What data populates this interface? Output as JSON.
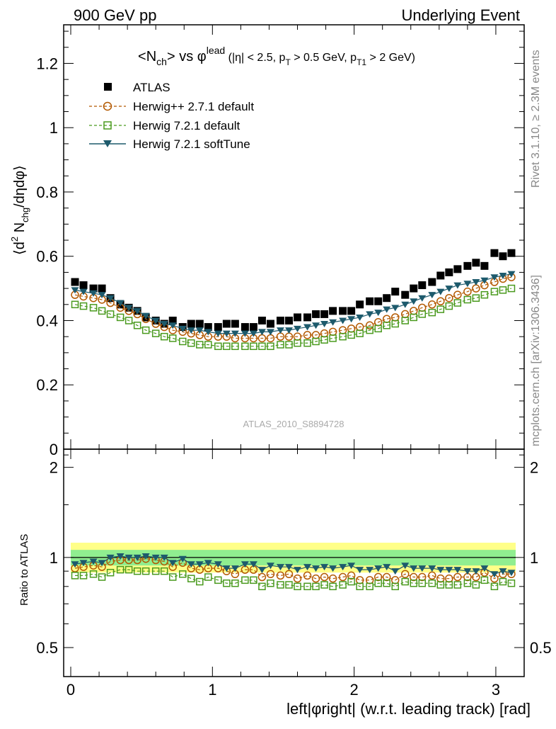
{
  "header": {
    "left": "900 GeV pp",
    "right": "Underlying Event"
  },
  "side_labels": {
    "rivet": "Rivet 3.1.10, ≥ 2.3M events",
    "mcplots": "mcplots.cern.ch [arXiv:1306.3436]"
  },
  "watermark": "ATLAS_2010_S8894728",
  "colors": {
    "atlas": "#000000",
    "herwigpp": "#b35900",
    "herwig721": "#4a9a1e",
    "softtune": "#1d5a6c",
    "band_inner": "#90ee90",
    "band_outer": "#ffff88"
  },
  "chart_data": [
    {
      "type": "scatter",
      "title_parts": {
        "n": "N",
        "n_sub": "ch",
        "vs": "vs",
        "phi": "φ",
        "lead": "lead",
        "cuts_a": "(|η| < 2.5, p",
        "sub_t": "T",
        "cuts_b": " > 0.5 GeV, p",
        "sub_t1": "T1",
        "cuts_c": " > 2 GeV)"
      },
      "ylabel_parts": {
        "a": "⟨d",
        "sup2": "2",
        "b": " N",
        "sub": "chg",
        "c": "/dηdφ⟩"
      },
      "ylim": [
        0,
        1.32
      ],
      "yticks": [
        "0",
        "0.2",
        "0.4",
        "0.6",
        "0.8",
        "1",
        "1.2"
      ],
      "x": [
        0.03,
        0.09,
        0.16,
        0.22,
        0.28,
        0.35,
        0.41,
        0.47,
        0.53,
        0.6,
        0.66,
        0.72,
        0.79,
        0.85,
        0.91,
        0.97,
        1.04,
        1.1,
        1.16,
        1.23,
        1.29,
        1.35,
        1.41,
        1.48,
        1.54,
        1.6,
        1.67,
        1.73,
        1.79,
        1.85,
        1.92,
        1.98,
        2.04,
        2.11,
        2.17,
        2.23,
        2.29,
        2.36,
        2.42,
        2.48,
        2.55,
        2.61,
        2.67,
        2.73,
        2.8,
        2.86,
        2.92,
        2.99,
        3.05,
        3.11
      ],
      "series": [
        {
          "name": "ATLAS",
          "marker": "square-filled",
          "values": [
            0.52,
            0.51,
            0.5,
            0.5,
            0.47,
            0.45,
            0.44,
            0.43,
            0.41,
            0.4,
            0.39,
            0.4,
            0.38,
            0.39,
            0.39,
            0.38,
            0.38,
            0.39,
            0.39,
            0.38,
            0.38,
            0.4,
            0.39,
            0.4,
            0.4,
            0.41,
            0.41,
            0.42,
            0.42,
            0.43,
            0.43,
            0.43,
            0.45,
            0.46,
            0.46,
            0.47,
            0.49,
            0.48,
            0.5,
            0.51,
            0.52,
            0.54,
            0.55,
            0.56,
            0.57,
            0.58,
            0.57,
            0.61,
            0.6,
            0.61
          ]
        },
        {
          "name": "Herwig++ 2.7.1 default",
          "marker": "circle-open",
          "values": [
            0.48,
            0.475,
            0.47,
            0.465,
            0.455,
            0.44,
            0.43,
            0.42,
            0.405,
            0.39,
            0.38,
            0.37,
            0.365,
            0.36,
            0.355,
            0.35,
            0.35,
            0.35,
            0.345,
            0.345,
            0.345,
            0.345,
            0.345,
            0.35,
            0.35,
            0.35,
            0.355,
            0.355,
            0.36,
            0.365,
            0.37,
            0.375,
            0.38,
            0.385,
            0.395,
            0.405,
            0.41,
            0.42,
            0.43,
            0.44,
            0.45,
            0.46,
            0.47,
            0.48,
            0.49,
            0.5,
            0.51,
            0.52,
            0.53,
            0.535
          ]
        },
        {
          "name": "Herwig 7.2.1 default",
          "marker": "square-open",
          "values": [
            0.45,
            0.445,
            0.44,
            0.43,
            0.42,
            0.41,
            0.4,
            0.385,
            0.37,
            0.36,
            0.35,
            0.345,
            0.335,
            0.33,
            0.325,
            0.325,
            0.32,
            0.32,
            0.32,
            0.32,
            0.32,
            0.32,
            0.32,
            0.325,
            0.325,
            0.33,
            0.33,
            0.335,
            0.34,
            0.345,
            0.35,
            0.355,
            0.36,
            0.37,
            0.375,
            0.385,
            0.39,
            0.4,
            0.41,
            0.42,
            0.425,
            0.435,
            0.445,
            0.455,
            0.465,
            0.47,
            0.48,
            0.49,
            0.495,
            0.5
          ]
        },
        {
          "name": "Herwig 7.2.1 softTune",
          "marker": "triangle-down-filled",
          "values": [
            0.495,
            0.49,
            0.485,
            0.48,
            0.47,
            0.455,
            0.44,
            0.43,
            0.415,
            0.4,
            0.39,
            0.385,
            0.375,
            0.37,
            0.37,
            0.365,
            0.36,
            0.36,
            0.36,
            0.36,
            0.36,
            0.365,
            0.365,
            0.37,
            0.37,
            0.375,
            0.38,
            0.385,
            0.39,
            0.395,
            0.4,
            0.405,
            0.41,
            0.42,
            0.425,
            0.435,
            0.44,
            0.45,
            0.46,
            0.47,
            0.48,
            0.49,
            0.5,
            0.51,
            0.515,
            0.52,
            0.525,
            0.535,
            0.54,
            0.545
          ]
        }
      ]
    },
    {
      "type": "scatter",
      "ylabel": "Ratio to ATLAS",
      "xlabel": "left|φright| (w.r.t. leading track) [rad]",
      "ylim": [
        0.4,
        2.3
      ],
      "yscale": "log",
      "yticks": [
        "0.5",
        "1",
        "2"
      ],
      "xlim": [
        -0.05,
        3.2
      ],
      "xticks": [
        "0",
        "1",
        "2",
        "3"
      ],
      "band_inner": [
        0.94,
        1.06
      ],
      "band_outer": [
        0.89,
        1.12
      ],
      "series": [
        {
          "name": "Herwig++ 2.7.1 default",
          "values": [
            0.92,
            0.93,
            0.94,
            0.93,
            0.97,
            0.98,
            0.98,
            0.98,
            0.99,
            0.98,
            0.97,
            0.93,
            0.96,
            0.92,
            0.91,
            0.92,
            0.92,
            0.9,
            0.88,
            0.91,
            0.91,
            0.86,
            0.88,
            0.87,
            0.88,
            0.85,
            0.87,
            0.85,
            0.86,
            0.85,
            0.86,
            0.87,
            0.84,
            0.84,
            0.86,
            0.86,
            0.84,
            0.88,
            0.86,
            0.86,
            0.87,
            0.85,
            0.85,
            0.86,
            0.86,
            0.86,
            0.89,
            0.85,
            0.88,
            0.88
          ]
        },
        {
          "name": "Herwig 7.2.1 default",
          "values": [
            0.87,
            0.87,
            0.88,
            0.86,
            0.89,
            0.91,
            0.91,
            0.9,
            0.9,
            0.9,
            0.9,
            0.86,
            0.88,
            0.85,
            0.83,
            0.86,
            0.84,
            0.82,
            0.82,
            0.84,
            0.84,
            0.8,
            0.82,
            0.81,
            0.81,
            0.8,
            0.8,
            0.8,
            0.81,
            0.8,
            0.81,
            0.83,
            0.8,
            0.8,
            0.82,
            0.82,
            0.8,
            0.83,
            0.82,
            0.82,
            0.82,
            0.81,
            0.81,
            0.81,
            0.82,
            0.81,
            0.84,
            0.8,
            0.83,
            0.82
          ]
        },
        {
          "name": "Herwig 7.2.1 softTune",
          "values": [
            0.95,
            0.96,
            0.97,
            0.96,
            1.0,
            1.01,
            1.0,
            1.0,
            1.01,
            1.0,
            1.0,
            0.96,
            0.99,
            0.95,
            0.95,
            0.96,
            0.95,
            0.92,
            0.92,
            0.95,
            0.95,
            0.91,
            0.94,
            0.93,
            0.93,
            0.91,
            0.93,
            0.92,
            0.93,
            0.92,
            0.93,
            0.94,
            0.91,
            0.91,
            0.92,
            0.93,
            0.9,
            0.94,
            0.92,
            0.92,
            0.92,
            0.91,
            0.91,
            0.91,
            0.9,
            0.9,
            0.92,
            0.88,
            0.9,
            0.89
          ]
        }
      ]
    }
  ]
}
